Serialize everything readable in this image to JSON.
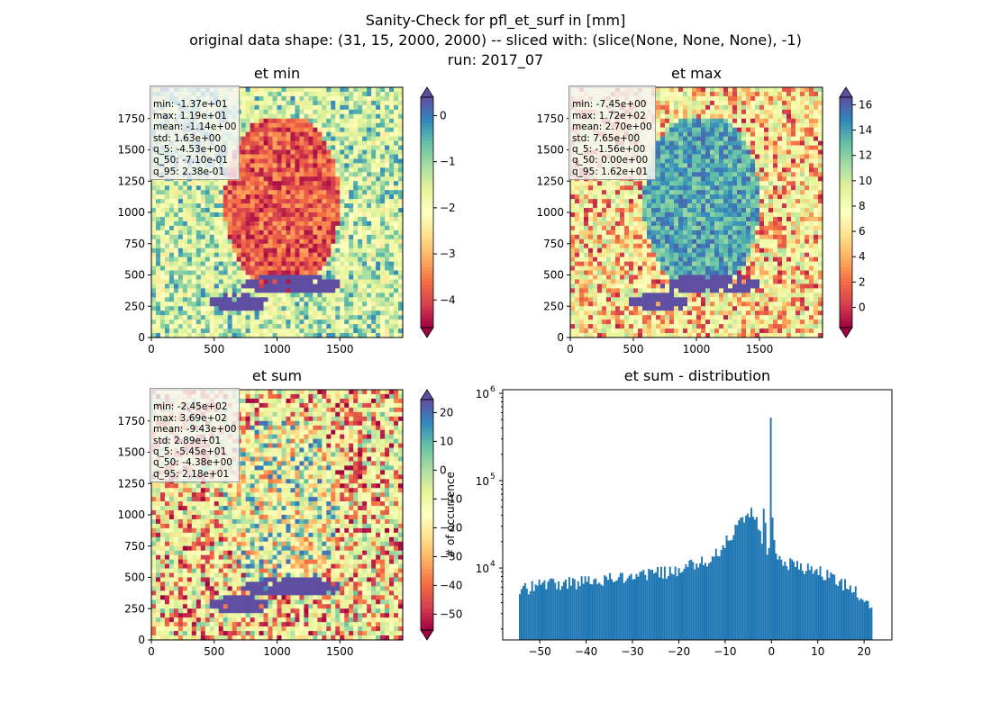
{
  "figure": {
    "title_lines": [
      "Sanity-Check for pfl_et_surf in [mm]",
      "original data shape: (31, 15, 2000, 2000) -- sliced with: (slice(None, None, None), -1)",
      "run: 2017_07"
    ]
  },
  "colors": {
    "spectral": [
      "#9e0142",
      "#d53e4f",
      "#f46d43",
      "#fdae61",
      "#fee08b",
      "#ffffbf",
      "#e6f598",
      "#abdda4",
      "#66c2a5",
      "#3288bd",
      "#5e4fa2"
    ],
    "histogram": "#1f77b4"
  },
  "chart_data": [
    {
      "type": "heatmap",
      "title": "et min",
      "xlim": [
        0,
        2000
      ],
      "ylim": [
        0,
        2000
      ],
      "xticks": [
        "0",
        "500",
        "1000",
        "1500"
      ],
      "yticks": [
        "0",
        "250",
        "500",
        "750",
        "1000",
        "1250",
        "1500",
        "1750"
      ],
      "colorbar": {
        "vmin": -4.6,
        "vmax": 0.4,
        "ticks": [
          "0",
          "−1",
          "−2",
          "−3",
          "−4"
        ],
        "tick_values": [
          0,
          -1,
          -2,
          -3,
          -4
        ]
      },
      "stats": [
        "min: -1.37e+01",
        "max: 1.19e+01",
        "mean: -1.14e+00",
        "std: 1.63e+00",
        "q_5: -4.53e+00",
        "q_50: -7.10e-01",
        "q_95: 2.38e-01"
      ]
    },
    {
      "type": "heatmap",
      "title": "et max",
      "xlim": [
        0,
        2000
      ],
      "ylim": [
        0,
        2000
      ],
      "xticks": [
        "0",
        "500",
        "1000",
        "1500"
      ],
      "yticks": [
        "0",
        "250",
        "500",
        "750",
        "1000",
        "1250",
        "1500",
        "1750"
      ],
      "colorbar": {
        "vmin": -1.6,
        "vmax": 16.6,
        "ticks": [
          "0",
          "2",
          "4",
          "6",
          "8",
          "10",
          "12",
          "14",
          "16"
        ],
        "tick_values": [
          0,
          2,
          4,
          6,
          8,
          10,
          12,
          14,
          16
        ]
      },
      "stats": [
        "min: -7.45e+00",
        "max: 1.72e+02",
        "mean: 2.70e+00",
        "std: 7.65e+00",
        "q_5: -1.56e+00",
        "q_50: 0.00e+00",
        "q_95: 1.62e+01"
      ]
    },
    {
      "type": "heatmap",
      "title": "et sum",
      "xlim": [
        0,
        2000
      ],
      "ylim": [
        0,
        2000
      ],
      "xticks": [
        "0",
        "500",
        "1000",
        "1500"
      ],
      "yticks": [
        "0",
        "250",
        "500",
        "750",
        "1000",
        "1250",
        "1500",
        "1750"
      ],
      "colorbar": {
        "vmin": -55.5,
        "vmax": 24.5,
        "ticks": [
          "20",
          "10",
          "0",
          "−10",
          "−20",
          "−30",
          "−40",
          "−50"
        ],
        "tick_values": [
          20,
          10,
          0,
          -10,
          -20,
          -30,
          -40,
          -50
        ]
      },
      "stats": [
        "min: -2.45e+02",
        "max: 3.69e+02",
        "mean: -9.43e+00",
        "std: 2.89e+01",
        "q_5: -5.45e+01",
        "q_50: -4.38e+00",
        "q_95: 2.18e+01"
      ]
    },
    {
      "type": "bar",
      "title": "et sum - distribution",
      "ylabel": "# of occurrence",
      "yscale": "log",
      "xlim": [
        -58,
        26
      ],
      "ylim": [
        1500,
        1100000
      ],
      "xticks": [
        "−50",
        "−40",
        "−30",
        "−20",
        "−10",
        "0",
        "10",
        "20"
      ],
      "xtick_values": [
        -50,
        -40,
        -30,
        -20,
        -10,
        0,
        10,
        20
      ],
      "yticks": [
        "10",
        "10",
        "10"
      ],
      "ytick_exponents": [
        "4",
        "5",
        "6"
      ],
      "ytick_values": [
        10000,
        100000,
        1000000
      ],
      "bin_range": [
        -54.5,
        21.8
      ],
      "x": [
        -54.5,
        -50,
        -45,
        -40,
        -35,
        -30,
        -25,
        -20,
        -15,
        -12,
        -10,
        -8,
        -6,
        -5,
        -4,
        -3,
        -2,
        -1.5,
        -1,
        -0.5,
        -0.2,
        0.3,
        1,
        2,
        3,
        5,
        8,
        10,
        12,
        14,
        16,
        18,
        20,
        21.8
      ],
      "values": [
        5500,
        6500,
        6800,
        7000,
        7700,
        8100,
        8700,
        9500,
        11500,
        14500,
        19000,
        27000,
        38000,
        42000,
        46000,
        30000,
        22000,
        55000,
        16000,
        17000,
        830000,
        24000,
        15000,
        13000,
        11500,
        10500,
        10000,
        9500,
        8500,
        7500,
        6500,
        5500,
        4500,
        3500
      ]
    }
  ]
}
